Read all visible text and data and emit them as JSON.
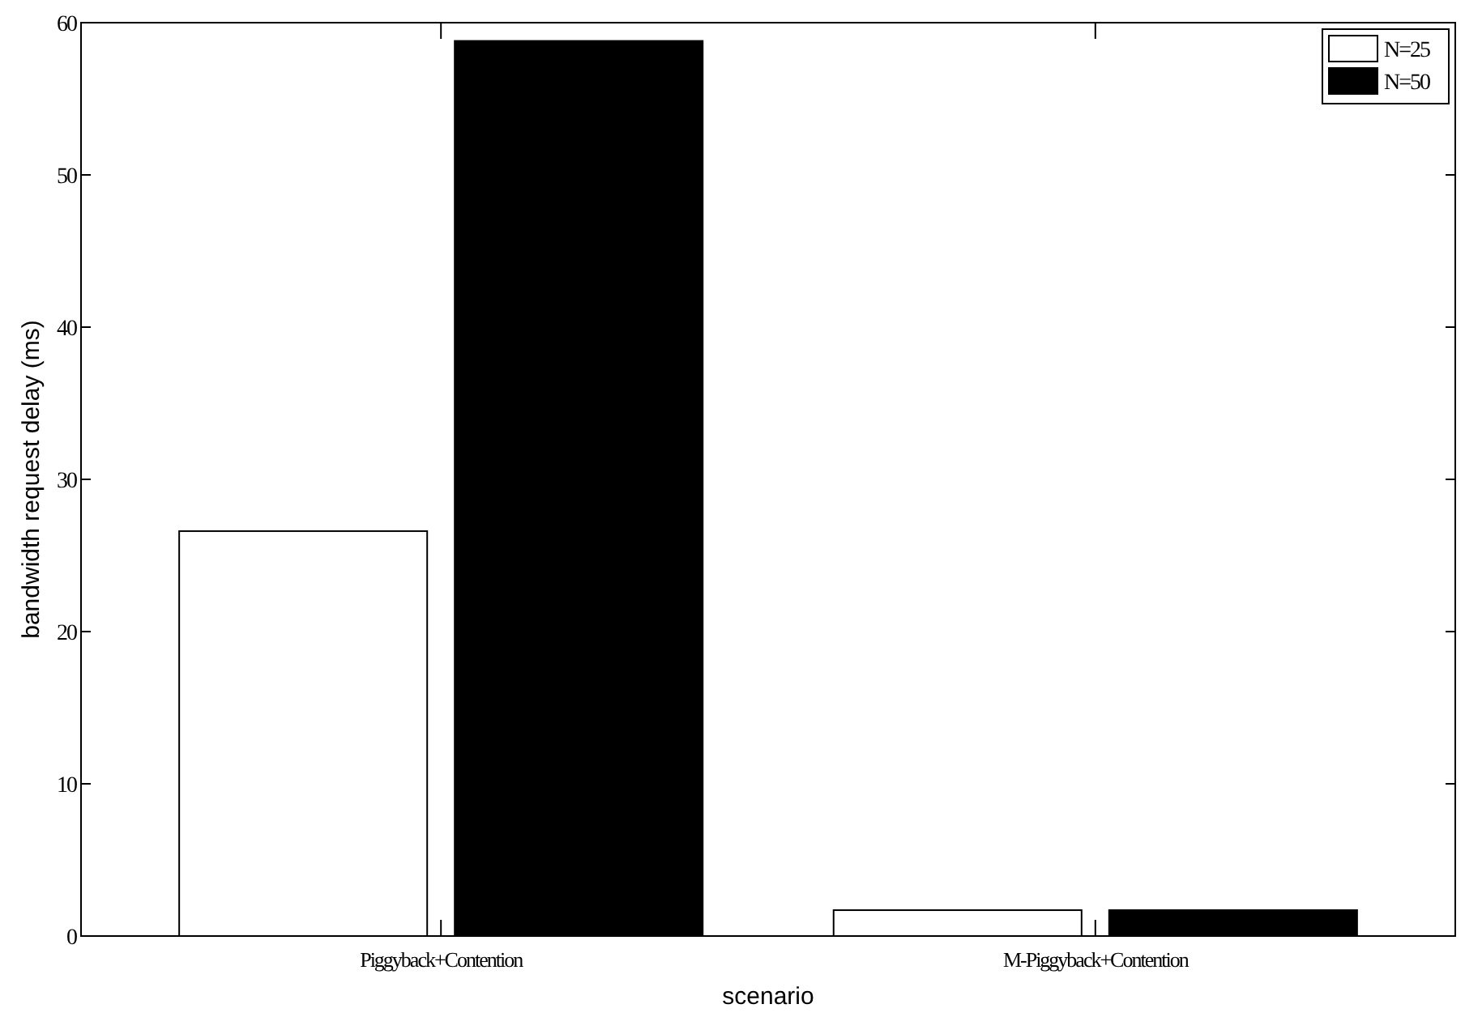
{
  "chart_data": {
    "type": "bar",
    "xlabel": "scenario",
    "ylabel": "bandwidth request delay (ms)",
    "categories": [
      "Piggyback+Contention",
      "M-Piggyback+Contention"
    ],
    "series": [
      {
        "name": "N=25",
        "color": "#ffffff",
        "values": [
          26.6,
          1.7
        ]
      },
      {
        "name": "N=50",
        "color": "#000000",
        "values": [
          58.8,
          1.7
        ]
      }
    ],
    "ylim": [
      0,
      60
    ],
    "yticks": [
      0,
      10,
      20,
      30,
      40,
      50,
      60
    ],
    "legend": "top right",
    "grid": false
  }
}
